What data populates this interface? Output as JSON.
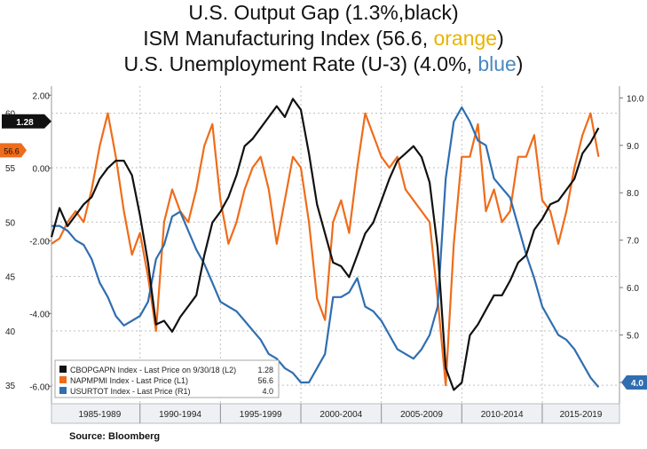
{
  "titles": {
    "line1": "U.S. Output Gap (1.3%,black)",
    "line2_prefix": "ISM Manufacturing  Index (56.6, ",
    "line2_color_word": "orange",
    "line2_suffix": ")",
    "line3_prefix": "U.S. Unemployment Rate (U-3) (4.0%, ",
    "line3_color_word": "blue",
    "line3_suffix": ")"
  },
  "source": "Source: Bloomberg",
  "colors": {
    "output_gap": "#111111",
    "ism": "#ef6c1a",
    "unemployment": "#2f6eb0",
    "grid": "#bfbfbf",
    "axis_strip": "#eef0f3"
  },
  "chart_data": {
    "type": "line",
    "x_range": [
      1984.5,
      2019.8
    ],
    "x_tick_labels": [
      "1985-1989",
      "1990-1994",
      "1995-1999",
      "2000-2004",
      "2005-2009",
      "2010-2014",
      "2015-2019"
    ],
    "axes": {
      "L1": {
        "ticks": [
          35,
          40,
          45,
          50,
          55,
          60
        ],
        "range": [
          33.3,
          62.5
        ]
      },
      "L2": {
        "ticks": [
          "2.00",
          "0.00",
          "-2.00",
          "-4.00",
          "-6.00"
        ],
        "range": [
          -6.48,
          2.25
        ]
      },
      "R1": {
        "ticks": [
          "4.0",
          "5.0",
          "6.0",
          "7.0",
          "8.0",
          "9.0",
          "10.0"
        ],
        "range": [
          3.55,
          10.25
        ]
      }
    },
    "last_value_tags": [
      {
        "series": "output_gap",
        "axis": "L2",
        "label": "1.28",
        "value": 1.28
      },
      {
        "series": "ism",
        "axis": "L1",
        "label": "56.6",
        "value": 56.6
      },
      {
        "series": "unemployment",
        "axis": "R1",
        "label": "4.0",
        "value": 4.0
      }
    ],
    "legend": {
      "placement": "bottom-left",
      "entries": [
        {
          "series": "output_gap",
          "label": "CBOPGAPN Index - Last Price on 9/30/18 (L2)",
          "value": "1.28"
        },
        {
          "series": "ism",
          "label": "NAPMPMI Index - Last Price (L1)",
          "value": "56.6"
        },
        {
          "series": "unemployment",
          "label": "USURTOT Index - Last Price (R1)",
          "value": "4.0"
        }
      ]
    },
    "series": [
      {
        "key": "output_gap",
        "axis": "L2",
        "x": [
          1984.5,
          1985,
          1985.5,
          1986,
          1986.5,
          1987,
          1987.5,
          1988,
          1988.5,
          1989,
          1989.5,
          1990,
          1990.5,
          1991,
          1991.5,
          1992,
          1992.5,
          1993,
          1993.5,
          1994,
          1994.5,
          1995,
          1995.5,
          1996,
          1996.5,
          1997,
          1997.5,
          1998,
          1998.5,
          1999,
          1999.5,
          2000,
          2000.5,
          2001,
          2001.5,
          2002,
          2002.5,
          2003,
          2003.5,
          2004,
          2004.5,
          2005,
          2005.5,
          2006,
          2006.5,
          2007,
          2007.5,
          2008,
          2008.5,
          2009,
          2009.5,
          2010,
          2010.5,
          2011,
          2011.5,
          2012,
          2012.5,
          2013,
          2013.5,
          2014,
          2014.5,
          2015,
          2015.5,
          2016,
          2016.5,
          2017,
          2017.5,
          2018,
          2018.5
        ],
        "y": [
          -1.9,
          -1.1,
          -1.6,
          -1.3,
          -1.0,
          -0.8,
          -0.3,
          0.0,
          0.2,
          0.2,
          -0.2,
          -1.3,
          -2.6,
          -4.3,
          -4.2,
          -4.5,
          -4.1,
          -3.8,
          -3.5,
          -2.4,
          -1.5,
          -1.2,
          -0.8,
          -0.2,
          0.6,
          0.8,
          1.1,
          1.4,
          1.7,
          1.4,
          1.9,
          1.6,
          0.4,
          -1.0,
          -1.8,
          -2.6,
          -2.7,
          -3.0,
          -2.4,
          -1.8,
          -1.5,
          -0.9,
          -0.3,
          0.2,
          0.4,
          0.6,
          0.3,
          -0.4,
          -2.2,
          -5.5,
          -6.1,
          -5.9,
          -4.6,
          -4.3,
          -3.9,
          -3.5,
          -3.5,
          -3.1,
          -2.6,
          -2.4,
          -1.7,
          -1.4,
          -1.0,
          -0.9,
          -0.6,
          -0.3,
          0.4,
          0.7,
          1.1
        ]
      },
      {
        "key": "ism",
        "axis": "L1",
        "x": [
          1984.5,
          1985,
          1985.5,
          1986,
          1986.5,
          1987,
          1987.5,
          1988,
          1988.5,
          1989,
          1989.5,
          1990,
          1990.5,
          1991,
          1991.5,
          1992,
          1992.5,
          1993,
          1993.5,
          1994,
          1994.5,
          1995,
          1995.5,
          1996,
          1996.5,
          1997,
          1997.5,
          1998,
          1998.5,
          1999,
          1999.5,
          2000,
          2000.5,
          2001,
          2001.5,
          2002,
          2002.5,
          2003,
          2003.5,
          2004,
          2004.5,
          2005,
          2005.5,
          2006,
          2006.5,
          2007,
          2007.5,
          2008,
          2008.5,
          2009,
          2009.5,
          2010,
          2010.5,
          2011,
          2011.5,
          2012,
          2012.5,
          2013,
          2013.5,
          2014,
          2014.5,
          2015,
          2015.5,
          2016,
          2016.5,
          2017,
          2017.5,
          2018,
          2018.5
        ],
        "y": [
          48,
          48.5,
          50,
          51,
          50,
          53,
          57,
          60,
          56,
          51,
          47,
          49,
          45,
          40,
          50,
          53,
          51,
          50,
          53,
          57,
          59,
          52,
          48,
          50,
          53,
          55,
          56,
          53,
          48,
          52,
          56,
          55,
          50,
          43,
          41,
          50,
          52,
          49,
          55,
          60,
          58,
          56,
          55,
          56,
          53,
          52,
          51,
          50,
          43,
          35,
          48,
          56,
          56,
          59,
          51,
          53,
          50,
          51,
          56,
          56,
          58,
          52,
          51,
          48,
          51,
          55,
          58,
          60,
          56
        ]
      },
      {
        "key": "unemployment",
        "axis": "R1",
        "x": [
          1984.5,
          1985,
          1985.5,
          1986,
          1986.5,
          1987,
          1987.5,
          1988,
          1988.5,
          1989,
          1989.5,
          1990,
          1990.5,
          1991,
          1991.5,
          1992,
          1992.5,
          1993,
          1993.5,
          1994,
          1994.5,
          1995,
          1995.5,
          1996,
          1996.5,
          1997,
          1997.5,
          1998,
          1998.5,
          1999,
          1999.5,
          2000,
          2000.5,
          2001,
          2001.5,
          2002,
          2002.5,
          2003,
          2003.5,
          2004,
          2004.5,
          2005,
          2005.5,
          2006,
          2006.5,
          2007,
          2007.5,
          2008,
          2008.5,
          2009,
          2009.5,
          2010,
          2010.5,
          2011,
          2011.5,
          2012,
          2012.5,
          2013,
          2013.5,
          2014,
          2014.5,
          2015,
          2015.5,
          2016,
          2016.5,
          2017,
          2017.5,
          2018,
          2018.5
        ],
        "y": [
          7.3,
          7.3,
          7.2,
          7.0,
          6.9,
          6.6,
          6.1,
          5.8,
          5.4,
          5.2,
          5.3,
          5.4,
          5.7,
          6.6,
          6.9,
          7.5,
          7.6,
          7.2,
          6.8,
          6.5,
          6.1,
          5.7,
          5.6,
          5.5,
          5.3,
          5.1,
          4.9,
          4.6,
          4.5,
          4.3,
          4.2,
          4.0,
          4.0,
          4.3,
          4.6,
          5.8,
          5.8,
          5.9,
          6.2,
          5.6,
          5.5,
          5.3,
          5.0,
          4.7,
          4.6,
          4.5,
          4.7,
          5.0,
          5.6,
          8.3,
          9.5,
          9.8,
          9.5,
          9.1,
          9.0,
          8.3,
          8.1,
          7.9,
          7.3,
          6.7,
          6.2,
          5.6,
          5.3,
          5.0,
          4.9,
          4.7,
          4.4,
          4.1,
          3.9
        ]
      }
    ]
  }
}
